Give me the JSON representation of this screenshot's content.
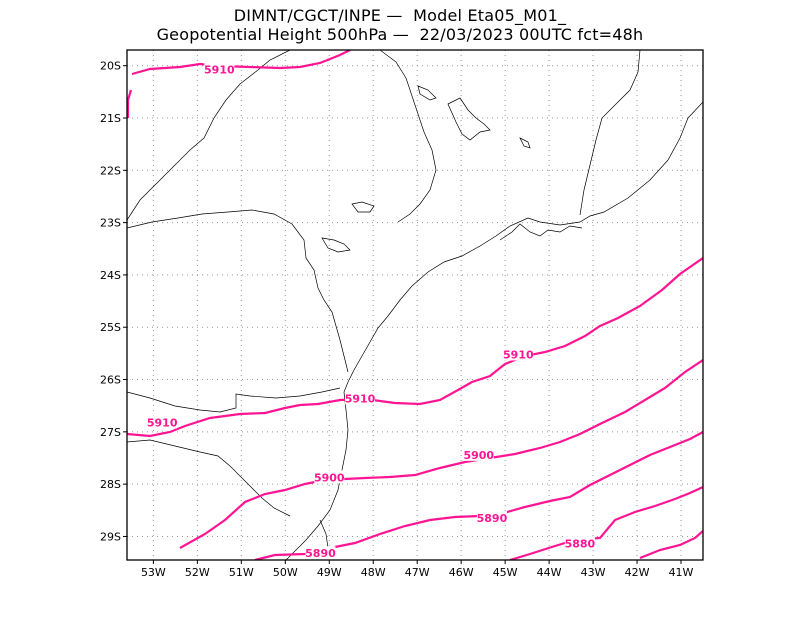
{
  "header": {
    "line1": "DIMNT/CGCT/INPE —  Model Eta05_M01_",
    "line2": "Geopotential Height 500hPa —  22/03/2023 00UTC fct=48h"
  },
  "map": {
    "lon_range": [
      -53.6,
      -40.5
    ],
    "lat_range": [
      -29.45,
      -19.7
    ],
    "lon_ticks": [
      "53W",
      "52W",
      "51W",
      "50W",
      "49W",
      "48W",
      "47W",
      "46W",
      "45W",
      "44W",
      "43W",
      "42W",
      "41W"
    ],
    "lat_ticks": [
      "20S",
      "21S",
      "22S",
      "23S",
      "24S",
      "25S",
      "26S",
      "27S",
      "28S",
      "29S"
    ],
    "contour_color": "#ff1493",
    "grid": true
  },
  "contours": [
    {
      "value": "5910",
      "label_lon": -51.5,
      "label_lat": -20.07
    },
    {
      "value": "5910",
      "label_lon": -48.3,
      "label_lat": -26.36
    },
    {
      "value": "5910",
      "label_lon": -52.8,
      "label_lat": -26.82
    },
    {
      "value": "5910",
      "label_lon": -44.7,
      "label_lat": -25.52
    },
    {
      "value": "5900",
      "label_lon": -49.0,
      "label_lat": -27.87
    },
    {
      "value": "5900",
      "label_lon": -45.6,
      "label_lat": -27.44
    },
    {
      "value": "5890",
      "label_lon": -45.3,
      "label_lat": -28.65
    },
    {
      "value": "5890",
      "label_lon": -49.2,
      "label_lat": -29.32
    },
    {
      "value": "5880",
      "label_lon": -43.3,
      "label_lat": -29.13
    }
  ]
}
